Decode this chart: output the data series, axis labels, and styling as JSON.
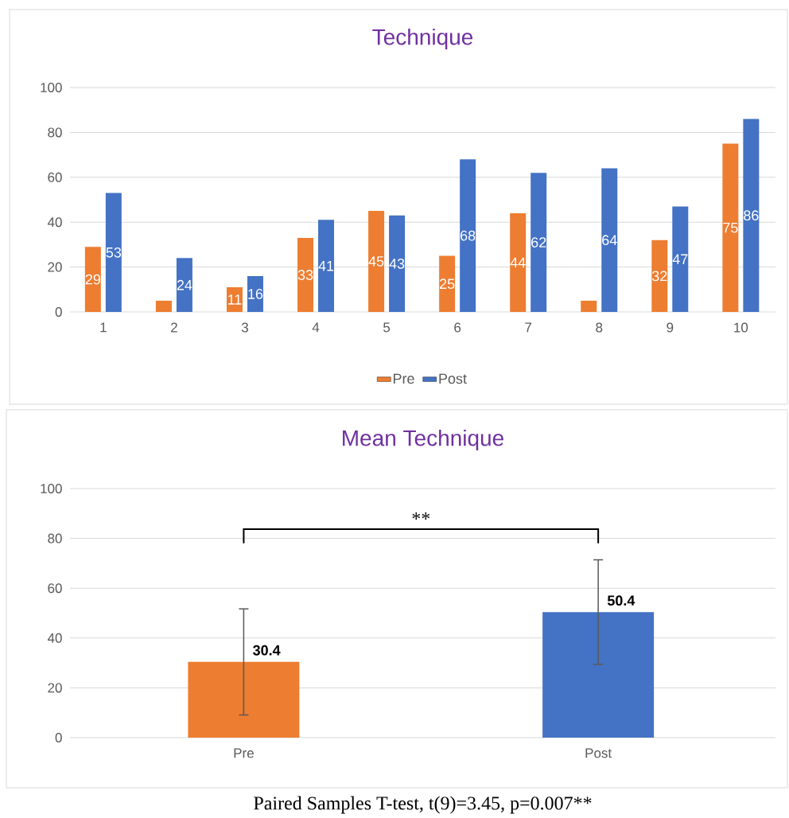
{
  "chart_data": [
    {
      "type": "bar",
      "title": "Technique",
      "categories": [
        "1",
        "2",
        "3",
        "4",
        "5",
        "6",
        "7",
        "8",
        "9",
        "10"
      ],
      "series": [
        {
          "name": "Pre",
          "color": "#ed7d31",
          "values": [
            29,
            5,
            11,
            33,
            45,
            25,
            44,
            5,
            32,
            75
          ],
          "value_labels": [
            "29",
            null,
            "11",
            "33",
            "45",
            "25",
            "44",
            null,
            "32",
            "75"
          ]
        },
        {
          "name": "Post",
          "color": "#4472c4",
          "values": [
            53,
            24,
            16,
            41,
            43,
            68,
            62,
            64,
            47,
            86
          ],
          "value_labels": [
            "53",
            "24",
            "16",
            "41",
            "43",
            "68",
            "62",
            "64",
            "47",
            "86"
          ]
        }
      ],
      "ylim": [
        0,
        100
      ],
      "yticks": [
        0,
        20,
        40,
        60,
        80,
        100
      ],
      "grid": "y",
      "legend": "bottom"
    },
    {
      "type": "bar",
      "title": "Mean Technique",
      "categories": [
        "Pre",
        "Post"
      ],
      "values": [
        30.4,
        50.4
      ],
      "colors": [
        "#ed7d31",
        "#4472c4"
      ],
      "errors": [
        21.3,
        21
      ],
      "data_labels": true,
      "ylim": [
        0,
        100
      ],
      "yticks": [
        0,
        20,
        40,
        60,
        80,
        100
      ],
      "grid": "y",
      "annotations": [
        "**",
        "Paired Samples T-test, t(9)=3.45, p=0.007**"
      ]
    }
  ]
}
